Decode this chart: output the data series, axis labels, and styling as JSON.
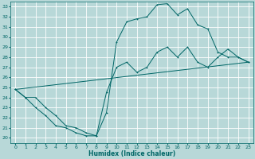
{
  "title": "",
  "xlabel": "Humidex (Indice chaleur)",
  "bg_color": "#b8d8d8",
  "grid_color": "#ffffff",
  "line_color": "#006666",
  "xlim": [
    -0.5,
    23.5
  ],
  "ylim": [
    19.5,
    33.5
  ],
  "xticks": [
    0,
    1,
    2,
    3,
    4,
    5,
    6,
    7,
    8,
    9,
    10,
    11,
    12,
    13,
    14,
    15,
    16,
    17,
    18,
    19,
    20,
    21,
    22,
    23
  ],
  "yticks": [
    20,
    21,
    22,
    23,
    24,
    25,
    26,
    27,
    28,
    29,
    30,
    31,
    32,
    33
  ],
  "line1_x": [
    0,
    1,
    2,
    3,
    4,
    5,
    6,
    7,
    8,
    9,
    10,
    11,
    12,
    13,
    14,
    15,
    16,
    17,
    18,
    19,
    20,
    21,
    22,
    23
  ],
  "line1_y": [
    24.8,
    24.0,
    24.0,
    23.0,
    22.2,
    21.2,
    21.0,
    20.5,
    20.2,
    22.5,
    29.5,
    31.5,
    31.8,
    32.0,
    33.2,
    33.3,
    32.2,
    32.8,
    31.2,
    30.8,
    28.5,
    28.0,
    28.0,
    27.5
  ],
  "line2_x": [
    0,
    1,
    2,
    3,
    4,
    5,
    6,
    7,
    8,
    9,
    10,
    11,
    12,
    13,
    14,
    15,
    16,
    17,
    18,
    19,
    20,
    21,
    22,
    23
  ],
  "line2_y": [
    24.8,
    24.0,
    23.0,
    22.2,
    21.2,
    21.0,
    20.5,
    20.2,
    20.2,
    24.5,
    27.0,
    27.5,
    26.5,
    27.0,
    28.5,
    29.0,
    28.0,
    29.0,
    27.5,
    27.0,
    28.0,
    28.8,
    28.0,
    27.5
  ],
  "line3_x": [
    0,
    23
  ],
  "line3_y": [
    24.8,
    27.5
  ],
  "tick_fontsize": 4.5,
  "xlabel_fontsize": 5.5,
  "linewidth": 0.7,
  "markersize": 2.0
}
